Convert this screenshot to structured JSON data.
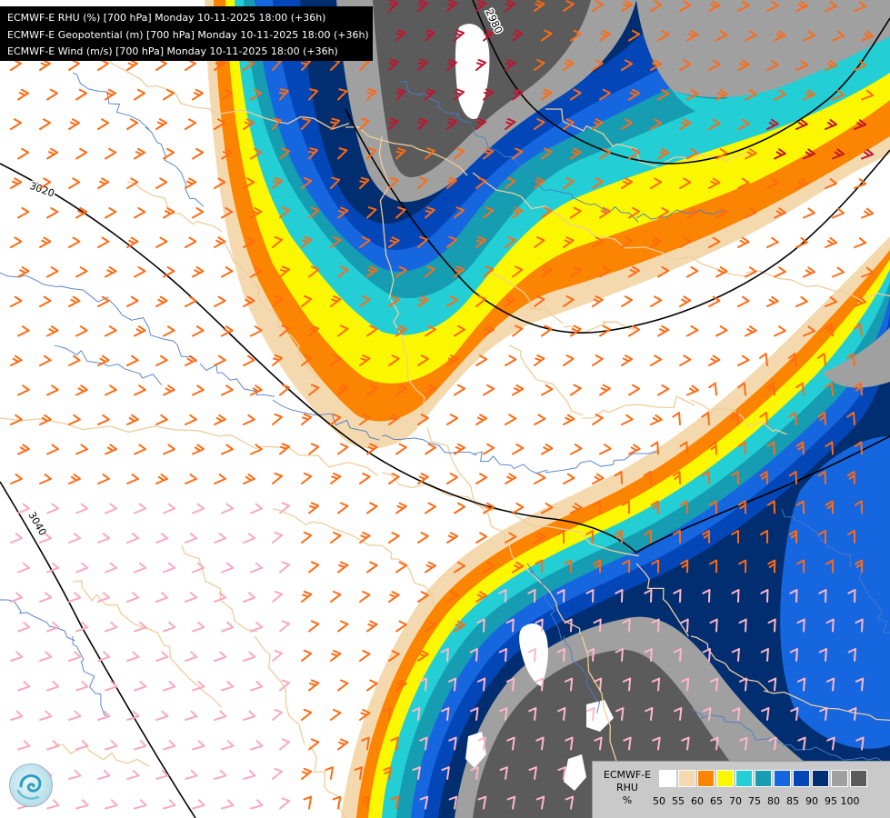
{
  "title_lines": [
    "ECMWF-E RHU (%) [700 hPa] Monday 10-11-2025 18:00 (+36h)",
    "ECMWF-E Geopotential (m) [700 hPa] Monday 10-11-2025 18:00 (+36h)",
    "ECMWF-E Wind (m/s) [700 hPa] Monday 10-11-2025 18:00 (+36h)"
  ],
  "contour_labels": [
    "2980",
    "3020",
    "3040"
  ],
  "legend": {
    "title_lines": [
      "ECMWF-E",
      "RHU",
      "%"
    ],
    "ticks": [
      "50",
      "55",
      "60",
      "65",
      "70",
      "75",
      "80",
      "85",
      "90",
      "95",
      "100"
    ],
    "colors": [
      "#ffffff",
      "#f5d9ae",
      "#fb8400",
      "#fbf700",
      "#23ced5",
      "#169db2",
      "#1566df",
      "#0346b7",
      "#002e71",
      "#a0a0a0",
      "#5b5b5b"
    ]
  },
  "colors": {
    "wind_barb_main": "#ff6a13",
    "wind_barb_strong": "#c2142e",
    "wind_barb_light": "#ffb7c8",
    "wind_barb_dry": "#f9a9c0",
    "border_line": "#eecd9c",
    "river_line": "#4c7bc8",
    "contour_line": "#000000"
  },
  "logo_icon": "ecmwf-logo-icon"
}
